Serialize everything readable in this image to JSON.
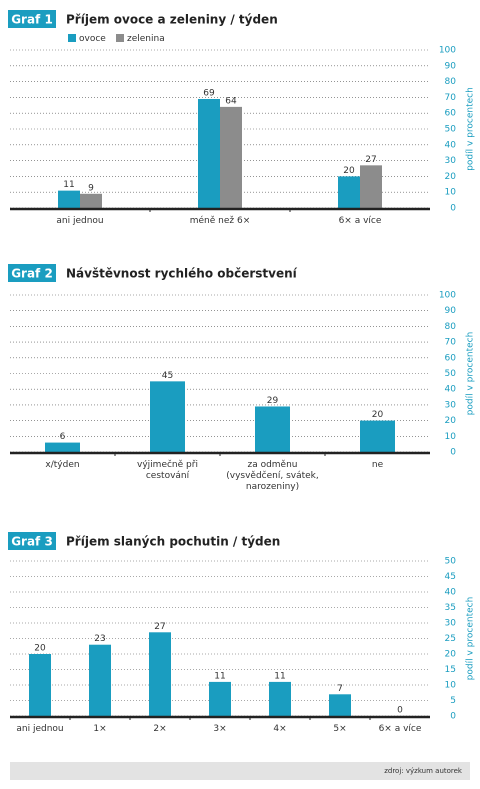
{
  "chart_data": [
    {
      "type": "bar",
      "label": "Graf 1",
      "title": "Příjem ovoce a zeleniny / týden",
      "y_label": "podíl v procentech",
      "categories": [
        "ani jednou",
        "méně než 6×",
        "6× a více"
      ],
      "series": [
        {
          "name": "ovoce",
          "color": "#1a9dc0",
          "values": [
            11,
            69,
            20
          ]
        },
        {
          "name": "zelenina",
          "color": "#8c8c8c",
          "values": [
            9,
            64,
            27
          ]
        }
      ],
      "ylim": [
        0,
        100
      ],
      "yticks": [
        0,
        10,
        20,
        30,
        40,
        50,
        60,
        70,
        80,
        90,
        100
      ],
      "grid": true
    },
    {
      "type": "bar",
      "label": "Graf 2",
      "title": "Návštěvnost rychlého občerstvení",
      "y_label": "podíl v procentech",
      "categories": [
        "x/týden",
        "výjimečně při cestování",
        "za odměnu (vysvědčení, svátek, narozeniny)",
        "ne"
      ],
      "values": [
        6,
        45,
        29,
        20
      ],
      "color": "#1a9dc0",
      "ylim": [
        0,
        100
      ],
      "yticks": [
        0,
        10,
        20,
        30,
        40,
        50,
        60,
        70,
        80,
        90,
        100
      ],
      "grid": true
    },
    {
      "type": "bar",
      "label": "Graf 3",
      "title": "Příjem slaných pochutin / týden",
      "y_label": "podíl v procentech",
      "categories": [
        "ani jednou",
        "1×",
        "2×",
        "3×",
        "4×",
        "5×",
        "6× a více"
      ],
      "values": [
        20,
        23,
        27,
        11,
        11,
        7,
        0
      ],
      "color": "#1a9dc0",
      "ylim": [
        0,
        50
      ],
      "yticks": [
        0,
        5,
        10,
        15,
        20,
        25,
        30,
        35,
        40,
        45,
        50
      ],
      "grid": true
    }
  ],
  "source": "zdroj: výzkum autorek"
}
